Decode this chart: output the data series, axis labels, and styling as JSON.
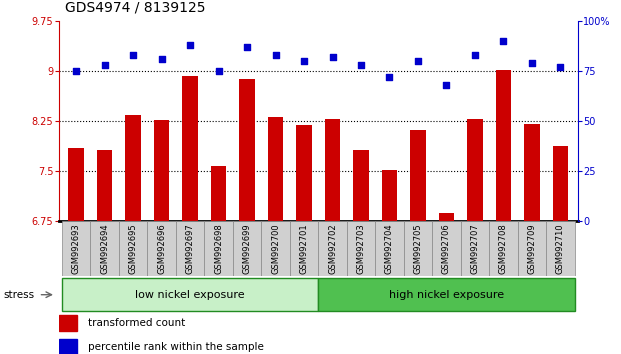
{
  "title": "GDS4974 / 8139125",
  "categories": [
    "GSM992693",
    "GSM992694",
    "GSM992695",
    "GSM992696",
    "GSM992697",
    "GSM992698",
    "GSM992699",
    "GSM992700",
    "GSM992701",
    "GSM992702",
    "GSM992703",
    "GSM992704",
    "GSM992705",
    "GSM992706",
    "GSM992707",
    "GSM992708",
    "GSM992709",
    "GSM992710"
  ],
  "bar_values": [
    7.85,
    7.82,
    8.35,
    8.27,
    8.93,
    7.58,
    8.88,
    8.32,
    8.19,
    8.28,
    7.82,
    7.52,
    8.12,
    6.87,
    8.28,
    9.02,
    8.21,
    7.88
  ],
  "scatter_values": [
    75,
    78,
    83,
    81,
    88,
    75,
    87,
    83,
    80,
    82,
    78,
    72,
    80,
    68,
    83,
    90,
    79,
    77
  ],
  "bar_color": "#cc0000",
  "scatter_color": "#0000cc",
  "ylim_left": [
    6.75,
    9.75
  ],
  "ylim_right": [
    0,
    100
  ],
  "yticks_left": [
    6.75,
    7.5,
    8.25,
    9.0,
    9.75
  ],
  "yticks_right": [
    0,
    25,
    50,
    75,
    100
  ],
  "ytick_labels_left": [
    "6.75",
    "7.5",
    "8.25",
    "9",
    "9.75"
  ],
  "ytick_labels_right": [
    "0",
    "25",
    "50",
    "75",
    "100%"
  ],
  "hlines": [
    7.5,
    8.25,
    9.0
  ],
  "group_low_count": 9,
  "group_low_label": "low nickel exposure",
  "group_high_label": "high nickel exposure",
  "stress_label": "stress",
  "legend_bar": "transformed count",
  "legend_scatter": "percentile rank within the sample",
  "bar_width": 0.55,
  "bg_color": "#ffffff",
  "plot_bg": "#ffffff",
  "cell_color": "#d0d0d0",
  "cell_edge_color": "#888888",
  "group_low_color": "#c8f0c8",
  "group_high_color": "#50c050",
  "group_edge_color": "#228B22",
  "title_fontsize": 10,
  "tick_fontsize": 7,
  "label_fontsize": 6,
  "group_fontsize": 8,
  "legend_fontsize": 7.5
}
